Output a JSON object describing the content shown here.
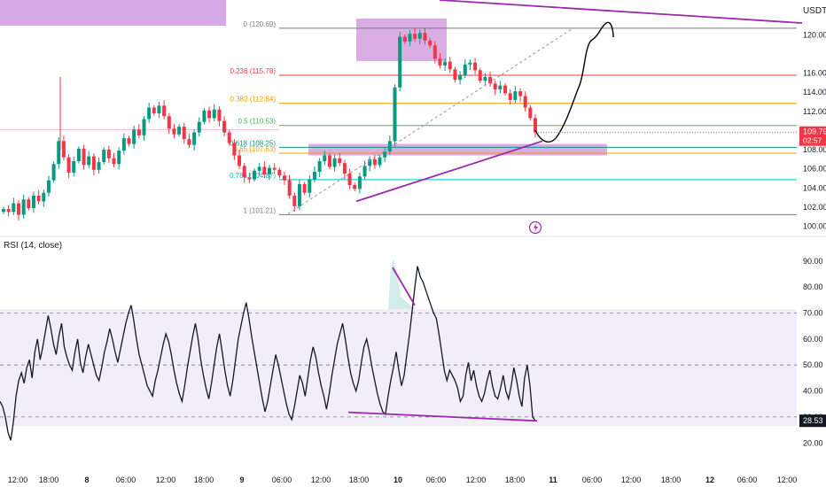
{
  "chart_data": [
    {
      "type": "candlestick",
      "currency_label": "USDT",
      "y_ticks": [
        "120.00",
        "116.00",
        "114.00",
        "112.00",
        "108.00",
        "106.00",
        "104.00",
        "102.00",
        "100.00"
      ],
      "ylim": [
        99.4,
        122.9
      ],
      "last_price": "109.79",
      "countdown": "02:57",
      "fib_levels": [
        {
          "label": "0 (120.69)",
          "value": 120.69,
          "color": "#787b86"
        },
        {
          "label": "0.236 (115.78)",
          "value": 115.78,
          "color": "#f23645"
        },
        {
          "label": "0.382 (112.84)",
          "value": 112.84,
          "color": "#ff9800"
        },
        {
          "label": "0.5 (110.53)",
          "value": 110.53,
          "color": "#4caf50"
        },
        {
          "label": "0.618 (108.25)",
          "value": 108.25,
          "color": "#089981"
        },
        {
          "label": "0.65 (107.63)",
          "value": 107.63,
          "color": "#ff9800"
        },
        {
          "label": "0.786 (104.87)",
          "value": 104.87,
          "color": "#00bcd4"
        },
        {
          "label": "1 (101.21)",
          "value": 101.21,
          "color": "#787b86"
        }
      ],
      "close_path": [
        101.8,
        101.5,
        102.4,
        101.2,
        102.8,
        101.9,
        103.2,
        102.6,
        103.5,
        104.8,
        106.5,
        108.9,
        107.2,
        105.6,
        106.8,
        108.1,
        106.4,
        107.3,
        105.9,
        106.7,
        108.0,
        107.1,
        106.5,
        107.9,
        109.2,
        108.6,
        110.1,
        109.5,
        111.2,
        112.4,
        111.8,
        112.6,
        111.5,
        110.2,
        109.6,
        110.4,
        109.1,
        108.5,
        109.8,
        110.9,
        112.1,
        111.3,
        112.2,
        111.0,
        109.8,
        108.7,
        107.4,
        106.3,
        105.1,
        104.9,
        105.8,
        106.2,
        105.4,
        106.1,
        105.9,
        105.3,
        104.8,
        103.2,
        102.1,
        104.4,
        103.5,
        104.9,
        105.7,
        106.8,
        107.4,
        106.2,
        107.1,
        106.6,
        105.5,
        104.3,
        103.9,
        105.2,
        106.3,
        107.0,
        106.4,
        107.2,
        107.8,
        108.9,
        114.5,
        119.8,
        119.3,
        120.1,
        119.6,
        120.2,
        119.4,
        118.9,
        117.5,
        116.8,
        117.2,
        116.4,
        115.3,
        115.8,
        116.9,
        117.1,
        116.3,
        115.2,
        115.6,
        114.9,
        114.3,
        114.7,
        113.9,
        113.2,
        114.1,
        113.6,
        112.4,
        111.3,
        109.8
      ],
      "projection": "curve from ~109 dipping to ~108.2 then rising to ~121.5 near 09:00 on the 11th",
      "x_ticks": [
        "12:00",
        "18:00",
        "8",
        "06:00",
        "12:00",
        "18:00",
        "9",
        "06:00",
        "12:00",
        "18:00",
        "10",
        "06:00",
        "12:00",
        "18:00",
        "11",
        "06:00",
        "12:00",
        "18:00",
        "12",
        "06:00",
        "12:00"
      ]
    },
    {
      "type": "line",
      "title": "RSI (14, close)",
      "y_ticks": [
        "90.00",
        "80.00",
        "70.00",
        "60.00",
        "50.00",
        "40.00",
        "30.00",
        "20.00"
      ],
      "ylim": [
        16,
        93
      ],
      "bands": [
        70,
        50,
        30
      ],
      "last_value": "28.53",
      "values": [
        36,
        34,
        30,
        24,
        21,
        28,
        38,
        44,
        47,
        43,
        49,
        52,
        45,
        55,
        60,
        52,
        57,
        63,
        69,
        64,
        58,
        54,
        61,
        66,
        57,
        53,
        50,
        48,
        55,
        60,
        51,
        47,
        53,
        58,
        54,
        50,
        46,
        44,
        49,
        55,
        59,
        64,
        60,
        55,
        51,
        56,
        61,
        66,
        70,
        73,
        67,
        60,
        54,
        50,
        46,
        42,
        40,
        38,
        44,
        48,
        53,
        58,
        62,
        59,
        54,
        48,
        43,
        39,
        36,
        42,
        49,
        55,
        61,
        66,
        60,
        52,
        46,
        41,
        37,
        43,
        50,
        57,
        62,
        55,
        48,
        42,
        38,
        44,
        52,
        60,
        65,
        70,
        74,
        68,
        61,
        55,
        49,
        43,
        37,
        32,
        36,
        42,
        48,
        54,
        50,
        45,
        40,
        35,
        31,
        29,
        34,
        40,
        46,
        43,
        38,
        45,
        52,
        57,
        53,
        47,
        42,
        38,
        33,
        39,
        46,
        52,
        58,
        62,
        66,
        60,
        53,
        47,
        43,
        40,
        44,
        51,
        57,
        60,
        55,
        49,
        44,
        39,
        35,
        32,
        31,
        38,
        44,
        49,
        55,
        48,
        42,
        46,
        54,
        62,
        71,
        80,
        88,
        84,
        82,
        79,
        76,
        73,
        70,
        68,
        62,
        55,
        48,
        44,
        48,
        46,
        44,
        41,
        36,
        38,
        46,
        51,
        44,
        48,
        42,
        38,
        36,
        39,
        44,
        48,
        42,
        38,
        37,
        41,
        46,
        40,
        37,
        42,
        49,
        44,
        38,
        34,
        45,
        50,
        42,
        30,
        28.53
      ]
    }
  ]
}
